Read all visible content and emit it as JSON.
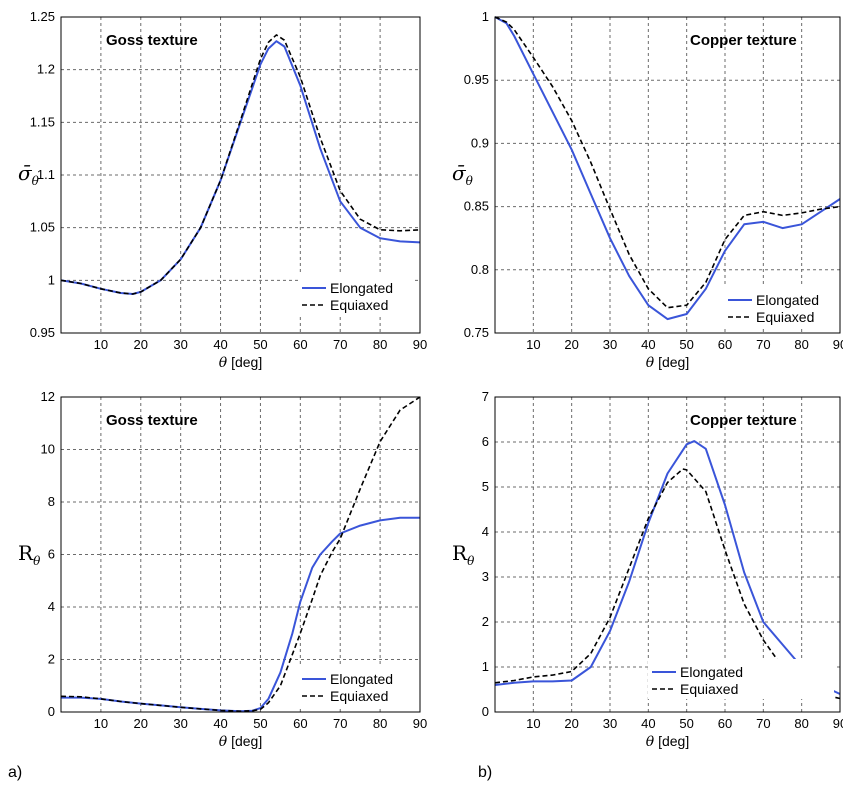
{
  "panel_labels": [
    "a)",
    "b)"
  ],
  "colors": {
    "elongated": "#3a55d9",
    "equiaxed": "#000000",
    "grid": "#6b6b6b"
  },
  "chart_data": [
    {
      "type": "line",
      "title": "Goss texture",
      "xlabel": "θ [deg]",
      "ylabel": "σ̄θ",
      "ylabel_symbol": "σ̄",
      "ylabel_sub": "θ",
      "xlim": [
        0,
        90
      ],
      "ylim": [
        0.95,
        1.25
      ],
      "xticks": [
        "10",
        "20",
        "30",
        "40",
        "50",
        "60",
        "70",
        "80",
        "90"
      ],
      "yticks": [
        "0.95",
        "1",
        "1.05",
        "1.1",
        "1.15",
        "1.2",
        "1.25"
      ],
      "grid": true,
      "legend": "bottom-right",
      "series": [
        {
          "name": "Elongated",
          "style": "solid",
          "x": [
            0,
            5,
            10,
            15,
            18,
            20,
            25,
            30,
            35,
            40,
            45,
            50,
            52,
            54,
            56,
            60,
            65,
            70,
            75,
            80,
            85,
            90
          ],
          "y": [
            1.0,
            0.997,
            0.992,
            0.988,
            0.987,
            0.989,
            1.0,
            1.02,
            1.05,
            1.095,
            1.15,
            1.205,
            1.22,
            1.227,
            1.222,
            1.185,
            1.125,
            1.075,
            1.05,
            1.04,
            1.037,
            1.036
          ]
        },
        {
          "name": "Equiaxed",
          "style": "dashed",
          "x": [
            0,
            5,
            10,
            15,
            18,
            20,
            25,
            30,
            35,
            40,
            45,
            50,
            52,
            54,
            56,
            60,
            65,
            70,
            75,
            80,
            85,
            90
          ],
          "y": [
            1.0,
            0.997,
            0.992,
            0.988,
            0.987,
            0.989,
            1.0,
            1.02,
            1.05,
            1.095,
            1.152,
            1.21,
            1.226,
            1.233,
            1.228,
            1.193,
            1.135,
            1.085,
            1.058,
            1.048,
            1.047,
            1.048
          ]
        }
      ]
    },
    {
      "type": "line",
      "title": "Copper texture",
      "xlabel": "θ [deg]",
      "ylabel": "σ̄θ",
      "ylabel_symbol": "σ̄",
      "ylabel_sub": "θ",
      "xlim": [
        0,
        90
      ],
      "ylim": [
        0.75,
        1.0
      ],
      "xticks": [
        "10",
        "20",
        "30",
        "40",
        "50",
        "60",
        "70",
        "80",
        "90"
      ],
      "yticks": [
        "0.75",
        "0.8",
        "0.85",
        "0.9",
        "0.95",
        "1"
      ],
      "grid": true,
      "legend": "bottom-right",
      "series": [
        {
          "name": "Elongated",
          "style": "solid",
          "x": [
            0,
            3,
            5,
            10,
            15,
            20,
            25,
            30,
            35,
            40,
            45,
            50,
            55,
            60,
            65,
            70,
            75,
            80,
            85,
            90
          ],
          "y": [
            1.0,
            0.995,
            0.985,
            0.955,
            0.925,
            0.895,
            0.86,
            0.825,
            0.795,
            0.772,
            0.761,
            0.765,
            0.785,
            0.815,
            0.836,
            0.838,
            0.833,
            0.836,
            0.846,
            0.856
          ]
        },
        {
          "name": "Equiaxed",
          "style": "dashed",
          "x": [
            0,
            3,
            5,
            10,
            15,
            20,
            25,
            30,
            35,
            40,
            45,
            50,
            55,
            60,
            65,
            70,
            75,
            80,
            85,
            90
          ],
          "y": [
            1.0,
            0.996,
            0.99,
            0.968,
            0.945,
            0.918,
            0.885,
            0.848,
            0.812,
            0.785,
            0.77,
            0.772,
            0.79,
            0.824,
            0.843,
            0.846,
            0.843,
            0.845,
            0.848,
            0.85
          ]
        }
      ]
    },
    {
      "type": "line",
      "title": "Goss texture",
      "xlabel": "θ [deg]",
      "ylabel": "Rθ",
      "ylabel_symbol": "R",
      "ylabel_sub": "θ",
      "xlim": [
        0,
        90
      ],
      "ylim": [
        0,
        12
      ],
      "xticks": [
        "10",
        "20",
        "30",
        "40",
        "50",
        "60",
        "70",
        "80",
        "90"
      ],
      "yticks": [
        "0",
        "2",
        "4",
        "6",
        "8",
        "10",
        "12"
      ],
      "grid": true,
      "legend": "bottom-right",
      "series": [
        {
          "name": "Elongated",
          "style": "solid",
          "x": [
            0,
            5,
            10,
            15,
            20,
            25,
            30,
            35,
            40,
            45,
            48,
            50,
            52,
            55,
            58,
            60,
            63,
            65,
            68,
            70,
            75,
            80,
            85,
            90
          ],
          "y": [
            0.55,
            0.55,
            0.5,
            0.4,
            0.32,
            0.25,
            0.18,
            0.12,
            0.06,
            0.03,
            0.05,
            0.15,
            0.5,
            1.5,
            3.0,
            4.2,
            5.5,
            6.0,
            6.5,
            6.8,
            7.1,
            7.3,
            7.4,
            7.4
          ]
        },
        {
          "name": "Equiaxed",
          "style": "dashed",
          "x": [
            0,
            5,
            10,
            15,
            20,
            25,
            30,
            35,
            40,
            45,
            48,
            50,
            52,
            55,
            58,
            60,
            63,
            65,
            68,
            70,
            75,
            80,
            85,
            90
          ],
          "y": [
            0.6,
            0.58,
            0.5,
            0.4,
            0.32,
            0.25,
            0.18,
            0.12,
            0.06,
            0.03,
            0.05,
            0.1,
            0.35,
            1.0,
            2.2,
            3.0,
            4.3,
            5.2,
            6.1,
            6.6,
            8.5,
            10.3,
            11.5,
            12.0
          ]
        }
      ]
    },
    {
      "type": "line",
      "title": "Copper texture",
      "xlabel": "θ [deg]",
      "ylabel": "Rθ",
      "ylabel_symbol": "R",
      "ylabel_sub": "θ",
      "xlim": [
        0,
        90
      ],
      "ylim": [
        0,
        7
      ],
      "xticks": [
        "10",
        "20",
        "30",
        "40",
        "50",
        "60",
        "70",
        "80",
        "90"
      ],
      "yticks": [
        "0",
        "1",
        "2",
        "3",
        "4",
        "5",
        "6",
        "7"
      ],
      "grid": true,
      "legend": "bottom-right",
      "series": [
        {
          "name": "Elongated",
          "style": "solid",
          "x": [
            0,
            5,
            10,
            15,
            20,
            25,
            30,
            35,
            40,
            45,
            50,
            52,
            55,
            60,
            65,
            70,
            75,
            80,
            85,
            90
          ],
          "y": [
            0.6,
            0.65,
            0.68,
            0.68,
            0.7,
            1.0,
            1.8,
            2.9,
            4.2,
            5.3,
            5.95,
            6.02,
            5.85,
            4.6,
            3.1,
            2.0,
            1.5,
            1.0,
            0.6,
            0.4
          ]
        },
        {
          "name": "Equiaxed",
          "style": "dashed",
          "x": [
            0,
            5,
            10,
            15,
            20,
            25,
            30,
            35,
            40,
            45,
            49,
            50,
            55,
            60,
            65,
            70,
            75,
            80,
            85,
            90
          ],
          "y": [
            0.65,
            0.7,
            0.78,
            0.82,
            0.9,
            1.3,
            2.1,
            3.2,
            4.3,
            5.1,
            5.4,
            5.38,
            4.9,
            3.6,
            2.4,
            1.6,
            1.0,
            0.6,
            0.4,
            0.3
          ]
        }
      ]
    }
  ]
}
